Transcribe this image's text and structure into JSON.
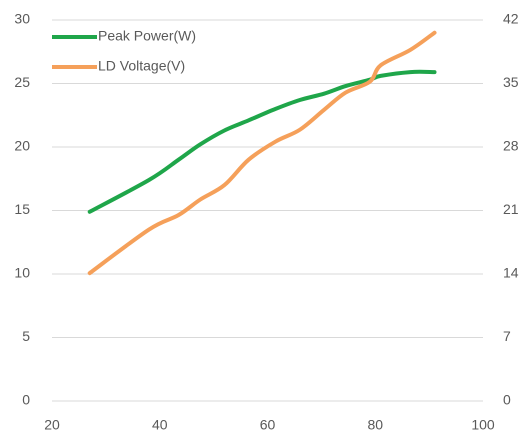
{
  "chart_data": {
    "type": "line",
    "x": [
      27,
      38,
      43.5,
      47.5,
      52,
      56.5,
      61.5,
      66,
      70.5,
      74.5,
      79,
      81,
      86.5,
      91
    ],
    "series": [
      {
        "name": "Peak Power(W)",
        "color": "#1fa64a",
        "values": [
          14.9,
          17.4,
          19.0,
          20.2,
          21.3,
          22.1,
          23.0,
          23.7,
          24.2,
          24.8,
          25.3,
          25.6,
          25.9,
          25.9
        ]
      },
      {
        "name": "LD Voltage(V)",
        "color": "#f5a05a",
        "axis": "y2",
        "values": [
          14.1,
          18.9,
          20.5,
          22.2,
          23.8,
          26.6,
          28.6,
          29.9,
          32.1,
          34.0,
          35.2,
          37.0,
          38.7,
          40.6
        ]
      }
    ],
    "xlim": [
      20,
      100
    ],
    "xticks": [
      20,
      40,
      60,
      80,
      100
    ],
    "ylim": [
      0,
      30
    ],
    "yticks": [
      0,
      5,
      10,
      15,
      20,
      25,
      30
    ],
    "y2lim": [
      0,
      42
    ],
    "y2ticks": [
      0,
      7,
      14,
      21,
      28,
      35,
      42
    ],
    "grid": true,
    "legend": "upper left"
  }
}
